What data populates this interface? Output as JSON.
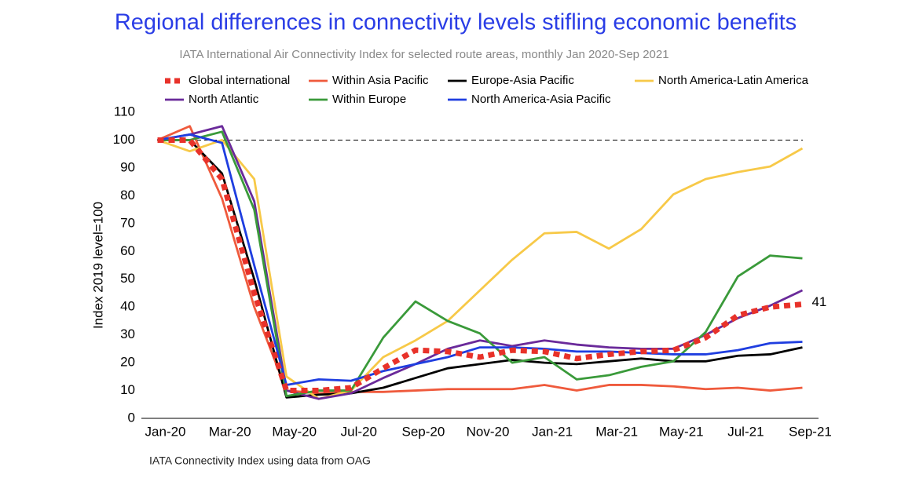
{
  "chart_data": {
    "type": "line",
    "title": "Regional differences in connectivity levels stifling economic benefits",
    "subtitle": "IATA International Air Connectivity Index for selected route areas, monthly Jan 2020-Sep 2021",
    "y_label": "Index 2019 level=100",
    "source": "IATA Connectivity Index using data from OAG",
    "categories": [
      "Jan-20",
      null,
      "Mar-20",
      null,
      "May-20",
      null,
      "Jul-20",
      null,
      "Sep-20",
      null,
      "Nov-20",
      null,
      "Jan-21",
      null,
      "Mar-21",
      null,
      "May-21",
      null,
      "Jul-21",
      null,
      "Sep-21"
    ],
    "ylim": [
      0,
      110
    ],
    "yticks": [
      0,
      10,
      20,
      30,
      40,
      50,
      60,
      70,
      80,
      90,
      100,
      110
    ],
    "reference_line": 100,
    "grid": false,
    "series": [
      {
        "name": "Global international",
        "color": "#e8322a",
        "dashed": true,
        "values": [
          100,
          100,
          86,
          45,
          10,
          10,
          11,
          18,
          24.5,
          24,
          22,
          24.5,
          24,
          21.5,
          23,
          24,
          24.5,
          29,
          37,
          40,
          41
        ]
      },
      {
        "name": "Within Asia Pacific",
        "color": "#ef5a3c",
        "values": [
          100,
          105,
          79,
          40,
          10,
          9,
          9.5,
          9.5,
          10,
          10.5,
          10.5,
          10.5,
          12,
          10,
          12,
          12,
          11.5,
          10.5,
          11,
          10,
          11
        ]
      },
      {
        "name": "Europe-Asia Pacific",
        "color": "#000000",
        "values": [
          100,
          100,
          88,
          50,
          7.5,
          8.5,
          9,
          11,
          14.5,
          18,
          19.5,
          21,
          20,
          19.5,
          20.5,
          21.5,
          20.5,
          20.5,
          22.5,
          23,
          25.5
        ]
      },
      {
        "name": "North America-Latin America",
        "color": "#f7c948",
        "values": [
          100,
          96,
          100,
          86,
          15,
          7,
          10,
          22,
          28,
          35,
          46,
          57,
          66.5,
          67,
          61,
          68,
          80.5,
          86,
          88.5,
          90.5,
          97
        ]
      },
      {
        "name": "North Atlantic",
        "color": "#6a2a9a",
        "values": [
          100,
          102,
          105,
          78,
          10,
          7,
          9,
          14.5,
          19.5,
          25,
          28,
          26,
          28,
          26.5,
          25.5,
          25,
          25,
          30,
          36,
          40.5,
          46
        ]
      },
      {
        "name": "Within Europe",
        "color": "#3a9a3a",
        "values": [
          100,
          100,
          103,
          75,
          8,
          10,
          10,
          29,
          42,
          35,
          30.5,
          20,
          22,
          14,
          15.5,
          18.5,
          20.5,
          31,
          51,
          58.5,
          57.5
        ]
      },
      {
        "name": "North America-Asia Pacific",
        "color": "#1f3ee0",
        "values": [
          100,
          102,
          99,
          55,
          12,
          14,
          13.5,
          17,
          19.5,
          22,
          25.5,
          25.5,
          25,
          24,
          24,
          23.5,
          23,
          23,
          24.5,
          27,
          27.5
        ]
      }
    ]
  }
}
